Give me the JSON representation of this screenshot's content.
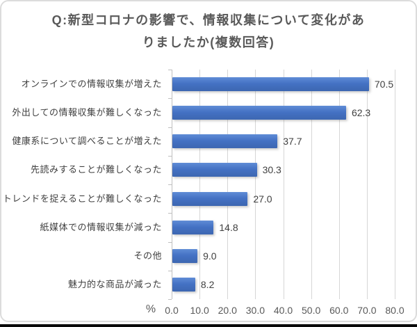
{
  "title": {
    "line1": "Q:新型コロナの影響で、情報収集について変化があ",
    "line2": "りましたか(複数回答)"
  },
  "chart_data": {
    "type": "bar",
    "orientation": "horizontal",
    "title": "Q:新型コロナの影響で、情報収集について変化がありましたか(複数回答)",
    "categories": [
      "オンラインでの情報収集が増えた",
      "外出しての情報収集が難しくなった",
      "健康系について調べることが増えた",
      "先読みすることが難しくなった",
      "トレンドを捉えることが難しくなった",
      "紙媒体での情報収集が減った",
      "その他",
      "魅力的な商品が減った"
    ],
    "values": [
      70.5,
      62.3,
      37.7,
      30.3,
      27.0,
      14.8,
      9.0,
      8.2
    ],
    "value_labels": [
      "70.5",
      "62.3",
      "37.7",
      "30.3",
      "27.0",
      "14.8",
      "9.0",
      "8.2"
    ],
    "x_axis": {
      "unit_label": "%",
      "ticks": [
        "0.0",
        "10.0",
        "20.0",
        "30.0",
        "40.0",
        "50.0",
        "60.0",
        "70.0",
        "80.0"
      ],
      "min": 0,
      "max": 80
    },
    "ylabel": "",
    "xlabel": "%",
    "grid": true,
    "legend": "none",
    "bar_color": "#4472C4",
    "gridline_color": "#D6D6D6",
    "text_color": "#404040",
    "axis_text_color": "#595959"
  }
}
